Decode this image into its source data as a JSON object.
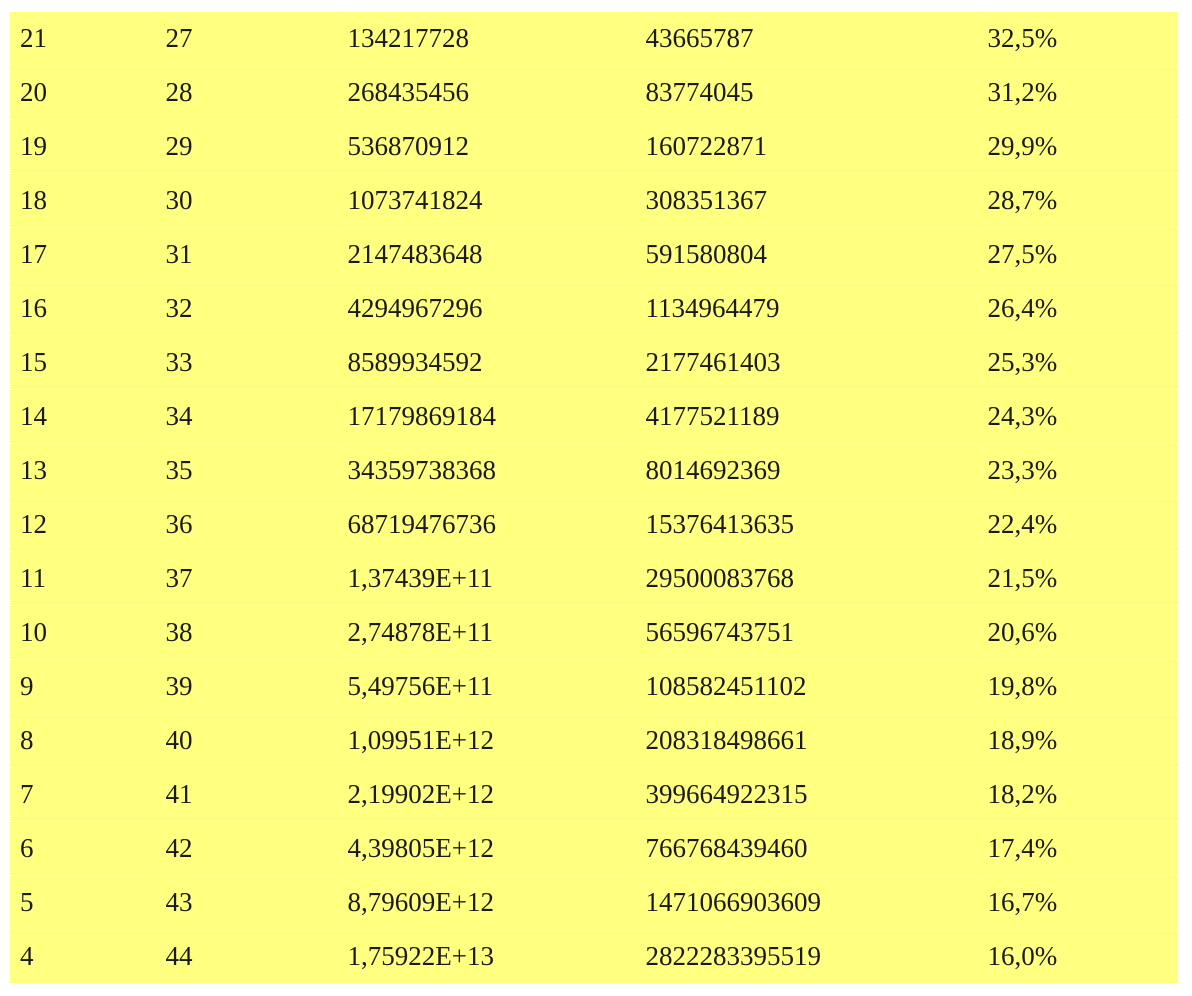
{
  "table": {
    "rows": [
      [
        "21",
        "27",
        "134217728",
        "43665787",
        "32,5%"
      ],
      [
        "20",
        "28",
        "268435456",
        "83774045",
        "31,2%"
      ],
      [
        "19",
        "29",
        "536870912",
        "160722871",
        "29,9%"
      ],
      [
        "18",
        "30",
        "1073741824",
        "308351367",
        "28,7%"
      ],
      [
        "17",
        "31",
        "2147483648",
        "591580804",
        "27,5%"
      ],
      [
        "16",
        "32",
        "4294967296",
        "1134964479",
        "26,4%"
      ],
      [
        "15",
        "33",
        "8589934592",
        "2177461403",
        "25,3%"
      ],
      [
        "14",
        "34",
        "17179869184",
        "4177521189",
        "24,3%"
      ],
      [
        "13",
        "35",
        "34359738368",
        "8014692369",
        "23,3%"
      ],
      [
        "12",
        "36",
        "68719476736",
        "15376413635",
        "22,4%"
      ],
      [
        "11",
        "37",
        "1,37439E+11",
        "29500083768",
        "21,5%"
      ],
      [
        "10",
        "38",
        "2,74878E+11",
        "56596743751",
        "20,6%"
      ],
      [
        "9",
        "39",
        "5,49756E+11",
        "108582451102",
        "19,8%"
      ],
      [
        "8",
        "40",
        "1,09951E+12",
        "208318498661",
        "18,9%"
      ],
      [
        "7",
        "41",
        "2,19902E+12",
        "399664922315",
        "18,2%"
      ],
      [
        "6",
        "42",
        "4,39805E+12",
        "766768439460",
        "17,4%"
      ],
      [
        "5",
        "43",
        "8,79609E+12",
        "1471066903609",
        "16,7%"
      ],
      [
        "4",
        "44",
        "1,75922E+13",
        "2822283395519",
        "16,0%"
      ]
    ]
  },
  "colors": {
    "cell_background": "#ffff80",
    "grid_lines": "#ffffff",
    "text": "#1a1a1a"
  }
}
